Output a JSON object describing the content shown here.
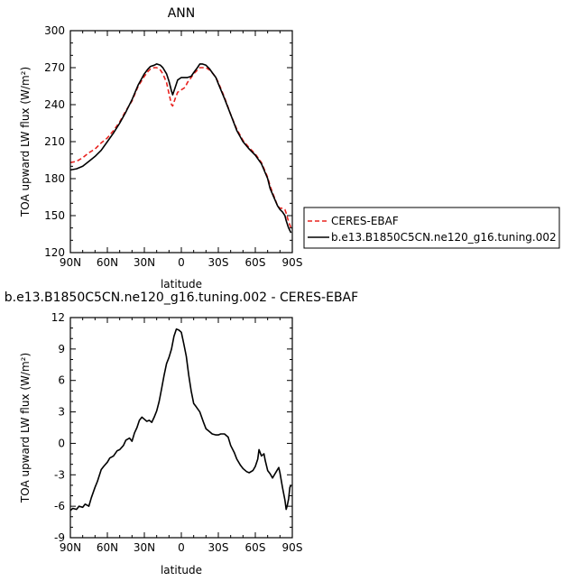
{
  "chart_data": [
    {
      "type": "line",
      "title": "ANN",
      "xlabel": "latitude",
      "ylabel": "TOA upward LW flux (W/m²)",
      "xlim": [
        90,
        -90
      ],
      "ylim": [
        120,
        300
      ],
      "yticks": [
        120,
        150,
        180,
        210,
        240,
        270,
        300
      ],
      "xticks": [
        90,
        60,
        30,
        0,
        -30,
        -60,
        -90
      ],
      "xticklabels": [
        "90N",
        "60N",
        "30N",
        "0",
        "30S",
        "60S",
        "90S"
      ],
      "legend_position": "right",
      "series": [
        {
          "name": "CERES-EBAF",
          "color": "#e8231f",
          "dash": "dashed",
          "x": [
            90,
            85,
            80,
            75,
            70,
            65,
            60,
            55,
            50,
            45,
            40,
            35,
            30,
            27,
            25,
            22,
            20,
            17,
            15,
            12,
            10,
            8,
            7,
            5,
            3,
            0,
            -3,
            -5,
            -8,
            -10,
            -13,
            -15,
            -17,
            -20,
            -23,
            -25,
            -28,
            -30,
            -35,
            -40,
            -45,
            -50,
            -55,
            -60,
            -65,
            -70,
            -72,
            -75,
            -78,
            -80,
            -82,
            -84,
            -85,
            -87,
            -89
          ],
          "values": [
            193,
            194,
            197,
            201,
            204,
            209,
            213,
            219,
            226,
            235,
            243,
            255,
            263,
            267,
            269,
            270,
            270,
            268,
            265,
            258,
            249,
            240,
            239,
            245,
            250,
            252,
            254,
            258,
            262,
            265,
            268,
            270,
            270,
            270,
            268,
            266,
            262,
            258,
            246,
            232,
            220,
            211,
            205,
            200,
            193,
            181,
            174,
            166,
            158,
            156,
            156,
            155,
            152,
            145,
            140
          ]
        },
        {
          "name": "b.e13.B1850C5CN.ne120_g16.tuning.002",
          "color": "#000000",
          "dash": "solid",
          "x": [
            90,
            85,
            80,
            75,
            70,
            65,
            60,
            55,
            50,
            45,
            40,
            35,
            30,
            27,
            25,
            22,
            20,
            17,
            15,
            12,
            10,
            8,
            7,
            5,
            3,
            0,
            -3,
            -5,
            -8,
            -10,
            -13,
            -15,
            -17,
            -20,
            -23,
            -25,
            -28,
            -30,
            -35,
            -40,
            -45,
            -50,
            -55,
            -60,
            -65,
            -70,
            -72,
            -75,
            -78,
            -80,
            -82,
            -84,
            -85,
            -87,
            -89
          ],
          "values": [
            187,
            188,
            190,
            194,
            198,
            203,
            210,
            217,
            225,
            234,
            244,
            256,
            265,
            269,
            271,
            272,
            273,
            272,
            270,
            265,
            259,
            251,
            248,
            254,
            260,
            262,
            262,
            262,
            263,
            266,
            270,
            273,
            273,
            272,
            269,
            266,
            262,
            257,
            245,
            232,
            219,
            210,
            204,
            199,
            192,
            180,
            172,
            165,
            158,
            155,
            153,
            150,
            146,
            140,
            136
          ]
        }
      ]
    },
    {
      "type": "line",
      "title": "b.e13.B1850C5CN.ne120_g16.tuning.002 - CERES-EBAF",
      "xlabel": "latitude",
      "ylabel": "TOA upward LW flux (W/m²)",
      "xlim": [
        90,
        -90
      ],
      "ylim": [
        -9,
        12
      ],
      "yticks": [
        -9,
        -6,
        -3,
        0,
        3,
        6,
        9,
        12
      ],
      "xticks": [
        90,
        60,
        30,
        0,
        -30,
        -60,
        -90
      ],
      "xticklabels": [
        "90N",
        "60N",
        "30N",
        "0",
        "30S",
        "60S",
        "90S"
      ],
      "series": [
        {
          "color": "#000000",
          "dash": "solid",
          "x": [
            90,
            88,
            85,
            83,
            80,
            78,
            75,
            73,
            70,
            68,
            65,
            63,
            60,
            58,
            55,
            52,
            50,
            47,
            45,
            42,
            40,
            38,
            36,
            34,
            32,
            30,
            28,
            26,
            24,
            22,
            20,
            18,
            16,
            14,
            12,
            10,
            8,
            6,
            4,
            2,
            0,
            -2,
            -4,
            -6,
            -8,
            -10,
            -12,
            -15,
            -18,
            -20,
            -22,
            -25,
            -28,
            -30,
            -32,
            -35,
            -38,
            -40,
            -43,
            -45,
            -48,
            -50,
            -53,
            -55,
            -58,
            -60,
            -62,
            -63,
            -65,
            -67,
            -68,
            -70,
            -72,
            -74,
            -75,
            -77,
            -79,
            -80,
            -82,
            -84,
            -85,
            -86,
            -87,
            -88,
            -89
          ],
          "values": [
            -6.4,
            -6.2,
            -6.3,
            -6.0,
            -6.1,
            -5.8,
            -6.0,
            -5.2,
            -4.2,
            -3.6,
            -2.5,
            -2.2,
            -1.8,
            -1.4,
            -1.2,
            -0.7,
            -0.6,
            -0.2,
            0.3,
            0.5,
            0.2,
            1.0,
            1.5,
            2.2,
            2.5,
            2.3,
            2.1,
            2.2,
            2.0,
            2.5,
            3.1,
            4.0,
            5.2,
            6.5,
            7.6,
            8.2,
            9.0,
            10.2,
            10.9,
            10.8,
            10.6,
            9.5,
            8.3,
            6.5,
            5.0,
            3.8,
            3.5,
            3.0,
            2.0,
            1.4,
            1.2,
            0.9,
            0.8,
            0.8,
            0.9,
            0.9,
            0.6,
            -0.2,
            -0.9,
            -1.5,
            -2.1,
            -2.4,
            -2.7,
            -2.8,
            -2.6,
            -2.2,
            -1.5,
            -0.6,
            -1.2,
            -1.0,
            -1.6,
            -2.6,
            -2.9,
            -3.3,
            -3.1,
            -2.7,
            -2.3,
            -2.8,
            -4.2,
            -5.4,
            -6.3,
            -5.9,
            -5.3,
            -4.2,
            -4.0
          ]
        }
      ]
    }
  ]
}
